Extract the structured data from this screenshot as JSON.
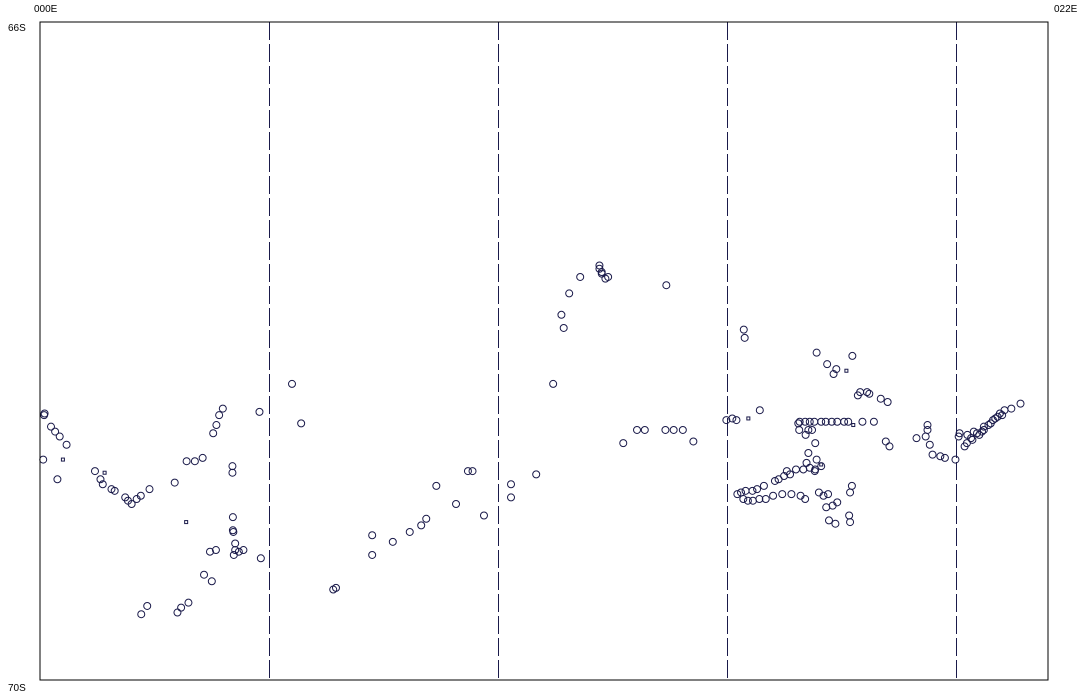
{
  "labels": {
    "lon_min": "000E",
    "lon_max": "022E",
    "lat_max": "66S",
    "lat_min": "70S"
  },
  "colors": {
    "frame": "#000000",
    "gridline": "#1a1a4a",
    "marker": "#1a1a4a"
  },
  "chart_data": {
    "type": "scatter",
    "xlim": [
      0,
      22
    ],
    "ylim": [
      -70,
      -66
    ],
    "x_unit": "degrees east",
    "y_unit": "degrees latitude (south negative)",
    "vertical_dashed_lines_lon": [
      5,
      10,
      15,
      20
    ],
    "series": [
      {
        "marker": "circle",
        "points": [
          [
            0.07,
            -68.66
          ],
          [
            0.09,
            -68.39
          ],
          [
            0.1,
            -68.38
          ],
          [
            0.24,
            -68.46
          ],
          [
            0.33,
            -68.49
          ],
          [
            0.43,
            -68.52
          ],
          [
            0.58,
            -68.57
          ],
          [
            0.38,
            -68.78
          ],
          [
            1.2,
            -68.73
          ],
          [
            1.32,
            -68.78
          ],
          [
            1.37,
            -68.81
          ],
          [
            1.56,
            -68.84
          ],
          [
            1.63,
            -68.85
          ],
          [
            1.86,
            -68.89
          ],
          [
            1.92,
            -68.91
          ],
          [
            2.0,
            -68.93
          ],
          [
            2.11,
            -68.9
          ],
          [
            2.2,
            -68.88
          ],
          [
            2.39,
            -68.84
          ],
          [
            2.94,
            -68.8
          ],
          [
            3.2,
            -68.67
          ],
          [
            3.38,
            -68.67
          ],
          [
            3.55,
            -68.65
          ],
          [
            3.58,
            -69.36
          ],
          [
            3.71,
            -69.22
          ],
          [
            3.75,
            -69.4
          ],
          [
            3.84,
            -69.21
          ],
          [
            3.78,
            -68.5
          ],
          [
            3.85,
            -68.45
          ],
          [
            3.91,
            -68.39
          ],
          [
            3.99,
            -68.35
          ],
          [
            4.2,
            -68.7
          ],
          [
            4.2,
            -68.74
          ],
          [
            4.21,
            -69.01
          ],
          [
            4.21,
            -69.09
          ],
          [
            4.22,
            -69.1
          ],
          [
            4.26,
            -69.17
          ],
          [
            4.23,
            -69.24
          ],
          [
            4.26,
            -69.21
          ],
          [
            4.34,
            -69.22
          ],
          [
            4.44,
            -69.21
          ],
          [
            4.82,
            -69.26
          ],
          [
            4.79,
            -68.37
          ],
          [
            2.21,
            -69.6
          ],
          [
            2.34,
            -69.55
          ],
          [
            3.0,
            -69.59
          ],
          [
            3.08,
            -69.56
          ],
          [
            3.24,
            -69.53
          ],
          [
            5.5,
            -68.2
          ],
          [
            5.7,
            -68.44
          ],
          [
            6.4,
            -69.45
          ],
          [
            6.46,
            -69.44
          ],
          [
            7.25,
            -69.24
          ],
          [
            7.25,
            -69.12
          ],
          [
            7.7,
            -69.16
          ],
          [
            8.07,
            -69.1
          ],
          [
            8.32,
            -69.06
          ],
          [
            8.43,
            -69.02
          ],
          [
            8.65,
            -68.82
          ],
          [
            9.08,
            -68.93
          ],
          [
            9.34,
            -68.73
          ],
          [
            9.44,
            -68.73
          ],
          [
            9.69,
            -69.0
          ],
          [
            10.28,
            -68.81
          ],
          [
            10.28,
            -68.89
          ],
          [
            10.83,
            -68.75
          ],
          [
            11.2,
            -68.2
          ],
          [
            11.38,
            -67.78
          ],
          [
            11.43,
            -67.86
          ],
          [
            11.55,
            -67.65
          ],
          [
            11.79,
            -67.55
          ],
          [
            12.21,
            -67.48
          ],
          [
            12.21,
            -67.5
          ],
          [
            12.26,
            -67.52
          ],
          [
            12.26,
            -67.53
          ],
          [
            12.34,
            -67.56
          ],
          [
            12.4,
            -67.55
          ],
          [
            13.67,
            -67.6
          ],
          [
            12.73,
            -68.56
          ],
          [
            13.03,
            -68.48
          ],
          [
            13.2,
            -68.48
          ],
          [
            13.65,
            -68.48
          ],
          [
            13.83,
            -68.48
          ],
          [
            14.03,
            -68.48
          ],
          [
            14.26,
            -68.55
          ],
          [
            14.98,
            -68.42
          ],
          [
            15.11,
            -68.41
          ],
          [
            15.2,
            -68.42
          ],
          [
            15.38,
            -67.92
          ],
          [
            15.36,
            -67.87
          ],
          [
            15.22,
            -68.87
          ],
          [
            15.35,
            -68.9
          ],
          [
            15.45,
            -68.91
          ],
          [
            15.56,
            -68.91
          ],
          [
            15.7,
            -68.9
          ],
          [
            15.84,
            -68.9
          ],
          [
            16.0,
            -68.88
          ],
          [
            16.2,
            -68.87
          ],
          [
            16.4,
            -68.87
          ],
          [
            16.6,
            -68.88
          ],
          [
            16.7,
            -68.9
          ],
          [
            15.3,
            -68.86
          ],
          [
            15.4,
            -68.85
          ],
          [
            15.55,
            -68.85
          ],
          [
            15.65,
            -68.84
          ],
          [
            15.8,
            -68.82
          ],
          [
            16.04,
            -68.79
          ],
          [
            16.12,
            -68.78
          ],
          [
            16.24,
            -68.76
          ],
          [
            16.3,
            -68.73
          ],
          [
            16.37,
            -68.75
          ],
          [
            16.5,
            -68.72
          ],
          [
            16.66,
            -68.72
          ],
          [
            16.8,
            -68.71
          ],
          [
            16.92,
            -68.72
          ],
          [
            17.0,
            -68.86
          ],
          [
            17.1,
            -68.88
          ],
          [
            17.2,
            -68.87
          ],
          [
            17.16,
            -68.95
          ],
          [
            17.22,
            -69.03
          ],
          [
            17.3,
            -68.94
          ],
          [
            17.4,
            -68.92
          ],
          [
            17.36,
            -69.05
          ],
          [
            17.68,
            -68.86
          ],
          [
            17.72,
            -68.82
          ],
          [
            17.66,
            -69.0
          ],
          [
            17.68,
            -69.04
          ],
          [
            15.71,
            -68.36
          ],
          [
            16.57,
            -68.48
          ],
          [
            16.55,
            -68.44
          ],
          [
            16.77,
            -68.48
          ],
          [
            16.85,
            -68.48
          ],
          [
            16.77,
            -68.62
          ],
          [
            16.95,
            -68.66
          ],
          [
            16.73,
            -68.68
          ],
          [
            17.05,
            -68.7
          ],
          [
            16.91,
            -68.73
          ],
          [
            16.92,
            -68.56
          ],
          [
            16.71,
            -68.51
          ],
          [
            16.58,
            -68.43
          ],
          [
            16.7,
            -68.43
          ],
          [
            16.8,
            -68.43
          ],
          [
            16.9,
            -68.43
          ],
          [
            17.05,
            -68.43
          ],
          [
            17.15,
            -68.43
          ],
          [
            17.28,
            -68.43
          ],
          [
            17.4,
            -68.43
          ],
          [
            17.55,
            -68.43
          ],
          [
            16.95,
            -68.01
          ],
          [
            17.18,
            -68.08
          ],
          [
            17.38,
            -68.11
          ],
          [
            17.32,
            -68.14
          ],
          [
            17.73,
            -68.03
          ],
          [
            17.85,
            -68.27
          ],
          [
            17.9,
            -68.25
          ],
          [
            18.05,
            -68.25
          ],
          [
            18.1,
            -68.26
          ],
          [
            18.35,
            -68.29
          ],
          [
            18.5,
            -68.31
          ],
          [
            17.64,
            -68.43
          ],
          [
            17.95,
            -68.43
          ],
          [
            18.2,
            -68.43
          ],
          [
            18.46,
            -68.55
          ],
          [
            18.54,
            -68.58
          ],
          [
            19.13,
            -68.53
          ],
          [
            19.33,
            -68.52
          ],
          [
            19.37,
            -68.45
          ],
          [
            19.37,
            -68.48
          ],
          [
            19.42,
            -68.57
          ],
          [
            19.48,
            -68.63
          ],
          [
            19.65,
            -68.64
          ],
          [
            19.75,
            -68.65
          ],
          [
            19.98,
            -68.66
          ],
          [
            20.07,
            -68.5
          ],
          [
            20.05,
            -68.52
          ],
          [
            20.18,
            -68.58
          ],
          [
            20.23,
            -68.56
          ],
          [
            20.35,
            -68.54
          ],
          [
            20.45,
            -68.5
          ],
          [
            20.6,
            -68.48
          ],
          [
            20.75,
            -68.44
          ],
          [
            20.85,
            -68.41
          ],
          [
            20.95,
            -68.38
          ],
          [
            21.05,
            -68.36
          ],
          [
            21.2,
            -68.35
          ],
          [
            21.4,
            -68.32
          ],
          [
            20.24,
            -68.51
          ],
          [
            20.32,
            -68.53
          ],
          [
            20.38,
            -68.49
          ],
          [
            20.5,
            -68.51
          ],
          [
            20.56,
            -68.49
          ],
          [
            20.6,
            -68.46
          ],
          [
            20.7,
            -68.45
          ],
          [
            20.8,
            -68.42
          ],
          [
            20.9,
            -68.4
          ],
          [
            21.0,
            -68.39
          ]
        ]
      },
      {
        "marker": "square",
        "points": [
          [
            0.5,
            -68.66
          ],
          [
            1.41,
            -68.74
          ],
          [
            3.19,
            -69.04
          ],
          [
            15.46,
            -68.41
          ],
          [
            17.6,
            -68.12
          ],
          [
            17.05,
            -68.69
          ],
          [
            17.75,
            -68.45
          ]
        ]
      }
    ]
  }
}
